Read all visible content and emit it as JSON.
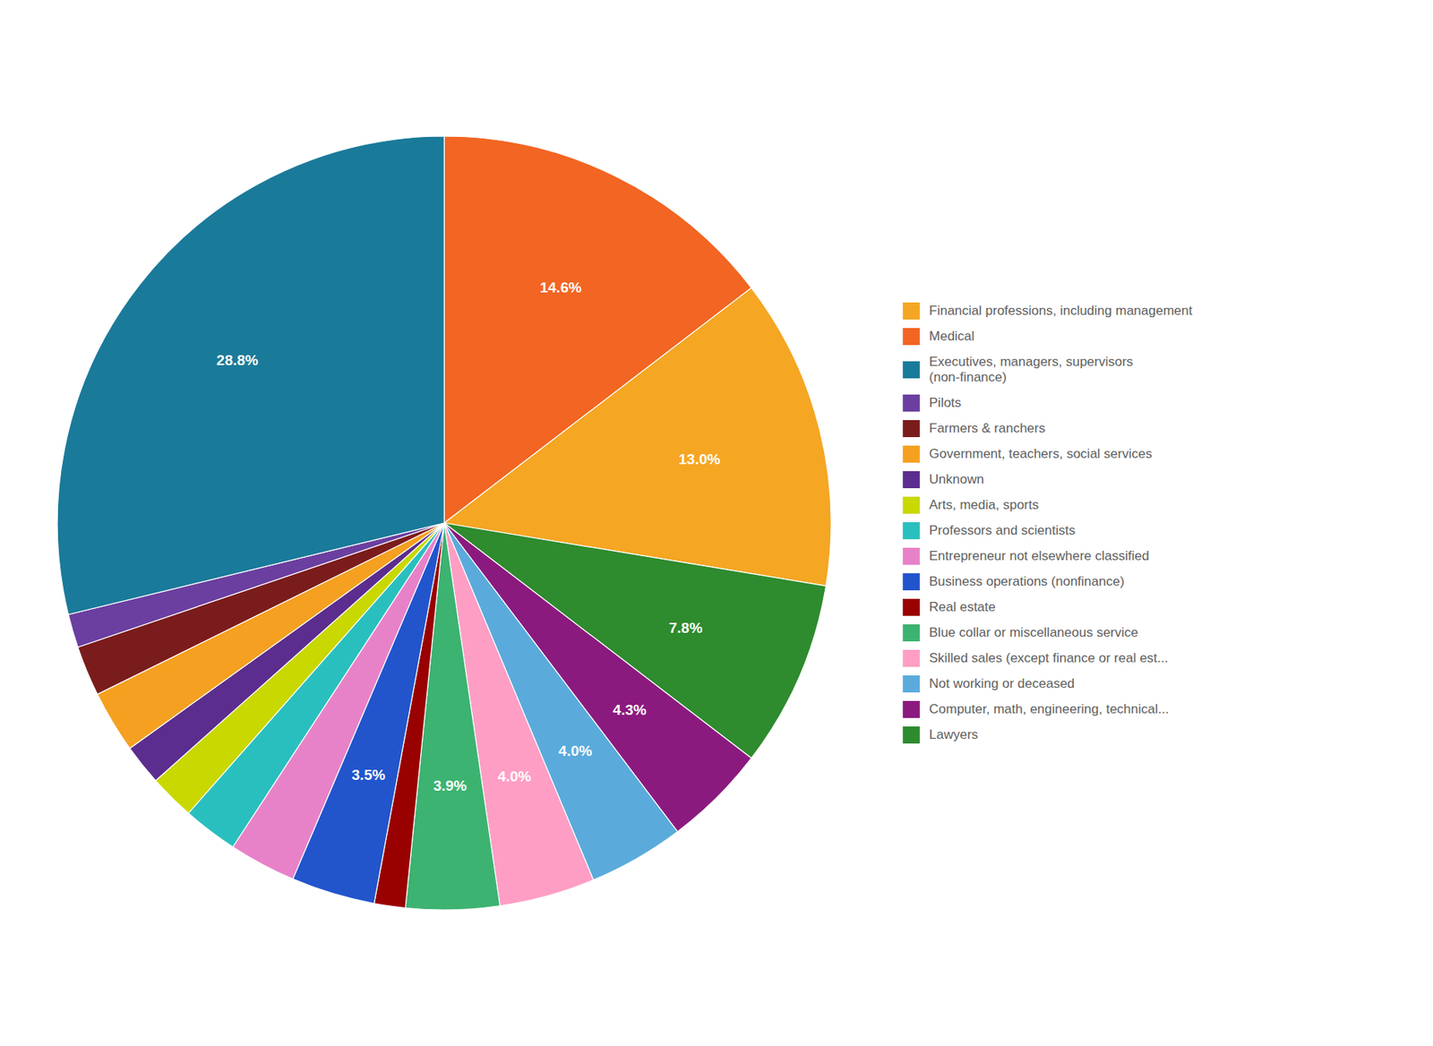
{
  "chart_data": {
    "type": "pie",
    "categories": [
      "Medical",
      "Financial professions, including management",
      "Lawyers",
      "Computer, math, engineering, technical...",
      "Not working or deceased",
      "Skilled sales (except finance or real est...",
      "Blue collar or miscellaneous service",
      "Real estate",
      "Business operations (nonfinance)",
      "Entrepreneur not elsewhere classified",
      "Professors and scientists",
      "Arts, media, sports",
      "Unknown",
      "Government, teachers, social services",
      "Farmers & ranchers",
      "Pilots",
      "Executives, managers, supervisors\n(non-finance)"
    ],
    "values": [
      14.6,
      13.0,
      7.8,
      4.3,
      4.0,
      4.0,
      3.9,
      1.3,
      3.5,
      2.8,
      2.3,
      1.9,
      1.7,
      2.6,
      2.1,
      1.4,
      28.8
    ],
    "value_labels": [
      "14.6%",
      "13.0%",
      "7.8%",
      "4.3%",
      "4.0%",
      "4.0%",
      "3.9%",
      null,
      "3.5%",
      null,
      null,
      null,
      null,
      null,
      null,
      null,
      "28.8%"
    ],
    "data_labels": true,
    "colors": [
      "#F26522",
      "#F5A623",
      "#2E8B2E",
      "#8B1A7E",
      "#5AABDC",
      "#FF9EC4",
      "#3CB371",
      "#990000",
      "#2255CC",
      "#E882C8",
      "#2ABFBF",
      "#C8D800",
      "#5B2D8E",
      "#F5A020",
      "#7B1C1C",
      "#6B3FA0",
      "#1A7A9A"
    ],
    "legend": "right",
    "legend_order": [
      1,
      0,
      16,
      15,
      14,
      13,
      12,
      11,
      10,
      9,
      8,
      7,
      6,
      5,
      4,
      3,
      2
    ]
  }
}
